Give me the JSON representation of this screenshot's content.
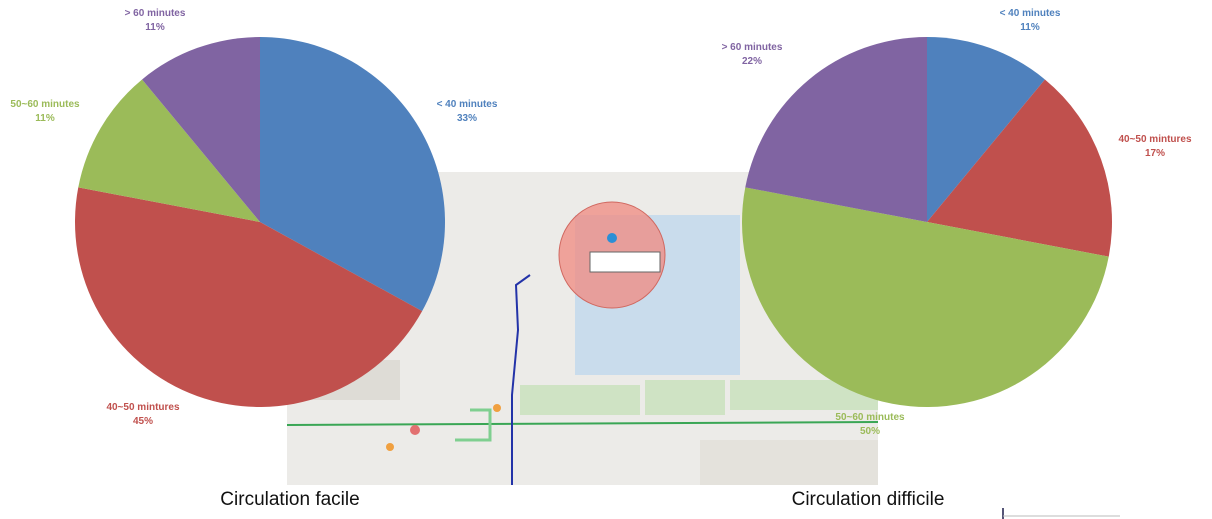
{
  "chart_data": [
    {
      "type": "pie",
      "title": "Circulation facile",
      "categories": [
        "< 40 minutes",
        "40~50 mintures",
        "50~60 minutes",
        "> 60 minutes"
      ],
      "values": [
        33,
        45,
        11,
        11
      ],
      "value_labels": [
        "33%",
        "45%",
        "11%",
        "11%"
      ],
      "colors": [
        "#4f81bd",
        "#c0504d",
        "#9bbb59",
        "#8064a2"
      ]
    },
    {
      "type": "pie",
      "title": "Circulation difficile",
      "categories": [
        "< 40 minutes",
        "40~50 mintures",
        "50~60 minutes",
        "> 60 minutes"
      ],
      "values": [
        11,
        17,
        50,
        22
      ],
      "value_labels": [
        "11%",
        "17%",
        "50%",
        "22%"
      ],
      "colors": [
        "#4f81bd",
        "#c0504d",
        "#9bbb59",
        "#8064a2"
      ]
    }
  ]
}
